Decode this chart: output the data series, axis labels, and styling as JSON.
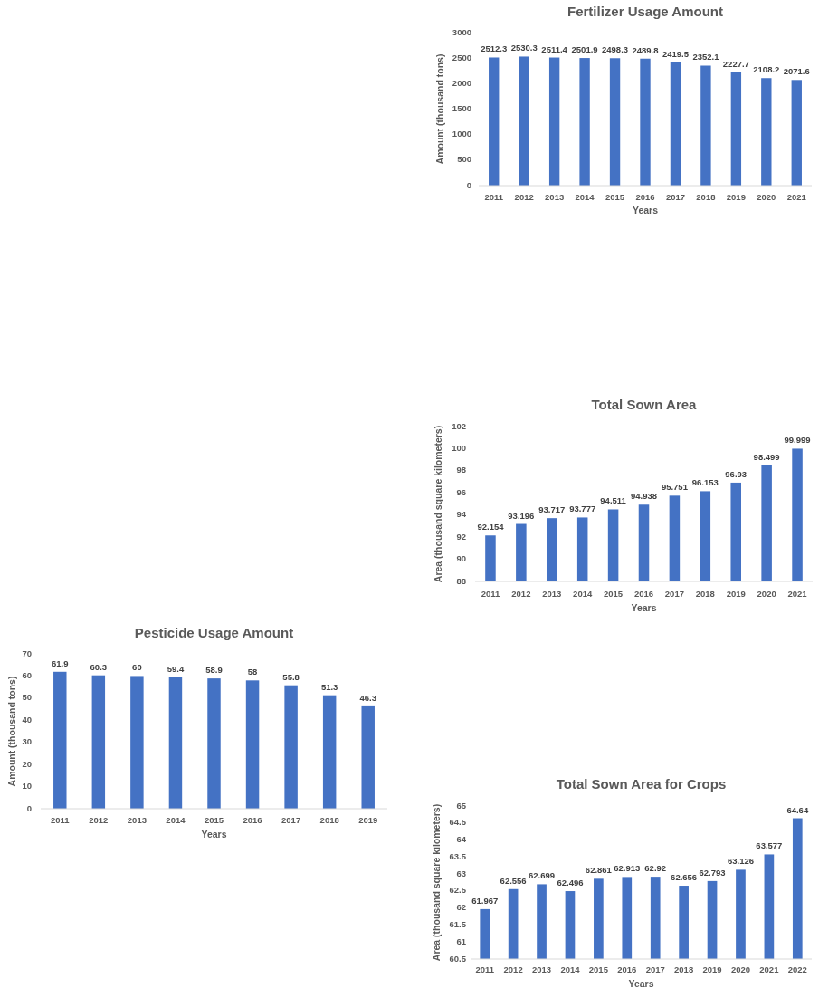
{
  "chart_data": [
    {
      "type": "bar",
      "title": "Fertilizer Usage Amount",
      "xlabel": "Years",
      "ylabel": "Amount (thousand tons)",
      "categories": [
        "2011",
        "2012",
        "2013",
        "2014",
        "2015",
        "2016",
        "2017",
        "2018",
        "2019",
        "2020",
        "2021"
      ],
      "values": [
        2512.3,
        2530.3,
        2511.4,
        2501.9,
        2498.3,
        2489.8,
        2419.5,
        2352.1,
        2227.7,
        2108.2,
        2071.6
      ],
      "color": "#4472c4",
      "ylim": [
        0,
        3000
      ],
      "yticks": [
        0,
        500,
        1000,
        1500,
        2000,
        2500,
        3000
      ],
      "data_labels": true
    },
    {
      "type": "bar",
      "title": "Total Sown Area",
      "xlabel": "Years",
      "ylabel": "Area (thousand square kilometers)",
      "categories": [
        "2011",
        "2012",
        "2013",
        "2014",
        "2015",
        "2016",
        "2017",
        "2018",
        "2019",
        "2020",
        "2021"
      ],
      "values": [
        92.154,
        93.196,
        93.717,
        93.777,
        94.511,
        94.938,
        95.751,
        96.153,
        96.93,
        98.499,
        99.999
      ],
      "color": "#4472c4",
      "ylim": [
        88,
        102
      ],
      "yticks": [
        88,
        90,
        92,
        94,
        96,
        98,
        100,
        102
      ],
      "data_labels": true
    },
    {
      "type": "bar",
      "title": "Pesticide Usage Amount",
      "xlabel": "Years",
      "ylabel": "Amount (thousand tons)",
      "categories": [
        "2011",
        "2012",
        "2013",
        "2014",
        "2015",
        "2016",
        "2017",
        "2018",
        "2019"
      ],
      "values": [
        61.9,
        60.3,
        60,
        59.4,
        58.9,
        58,
        55.8,
        51.3,
        46.3
      ],
      "color": "#4472c4",
      "ylim": [
        0,
        70
      ],
      "yticks": [
        0,
        10,
        20,
        30,
        40,
        50,
        60,
        70
      ],
      "data_labels": true
    },
    {
      "type": "bar",
      "title": "Total Sown Area for Crops",
      "xlabel": "Years",
      "ylabel": "Area (thousand square kilometers)",
      "categories": [
        "2011",
        "2012",
        "2013",
        "2014",
        "2015",
        "2016",
        "2017",
        "2018",
        "2019",
        "2020",
        "2021",
        "2022"
      ],
      "values": [
        61.967,
        62.556,
        62.699,
        62.496,
        62.861,
        62.913,
        62.92,
        62.656,
        62.793,
        63.126,
        63.577,
        64.64
      ],
      "color": "#4472c4",
      "ylim": [
        60.5,
        65
      ],
      "yticks": [
        60.5,
        61,
        61.5,
        62,
        62.5,
        63,
        63.5,
        64,
        64.5,
        65
      ],
      "data_labels": true
    }
  ]
}
